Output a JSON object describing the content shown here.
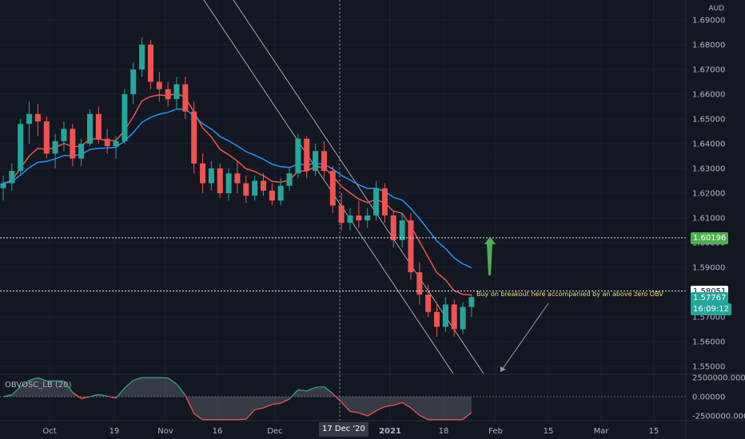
{
  "currency": "AUD",
  "price_axis_labels": [
    "1.69000",
    "1.68000",
    "1.67000",
    "1.66000",
    "1.65000",
    "1.64000",
    "1.63000",
    "1.62000",
    "1.61000",
    "1.60000",
    "1.59000",
    "1.58000",
    "1.57000",
    "1.56000",
    "1.55000"
  ],
  "price_axis_values": [
    1.69,
    1.68,
    1.67,
    1.66,
    1.65,
    1.64,
    1.63,
    1.62,
    1.61,
    1.6,
    1.59,
    1.58,
    1.57,
    1.56,
    1.55
  ],
  "time_axis_labels": [
    "Oct",
    "19",
    "Nov",
    "16",
    "Dec",
    "17 Dec '20",
    "2021",
    "18",
    "Feb",
    "15",
    "Mar",
    "15"
  ],
  "price_tags": {
    "level_green": "1.60196",
    "level_white": "1.58051",
    "last_price": "1.57767",
    "countdown": "16:09:12"
  },
  "annotation": "Buy on breakout here accompanied by an above zero OBV",
  "indicator": {
    "title": "OBVOSC_LB (20)",
    "axis_labels": [
      "2500000.00000",
      "0.00000",
      "-2500000.00000"
    ],
    "axis_values": [
      2500000,
      0,
      -2500000
    ]
  },
  "colors": {
    "background": "#131722",
    "up": "#26a69a",
    "down": "#ef5350",
    "ma_fast": "#ef5350",
    "ma_slow": "#2196f3",
    "green_tag": "#4caf50",
    "arrow": "#4caf50"
  },
  "chart_data": {
    "type": "candlestick",
    "symbol_currency": "AUD",
    "ylim": [
      1.547,
      1.693
    ],
    "x_labels": [
      "Oct",
      "19",
      "Nov",
      "16",
      "Dec",
      "2021",
      "18",
      "Feb",
      "15",
      "Mar",
      "15"
    ],
    "ohlc": [
      [
        1.622,
        1.627,
        1.617,
        1.624
      ],
      [
        1.624,
        1.632,
        1.621,
        1.629
      ],
      [
        1.629,
        1.65,
        1.627,
        1.648
      ],
      [
        1.648,
        1.657,
        1.64,
        1.652
      ],
      [
        1.652,
        1.656,
        1.643,
        1.649
      ],
      [
        1.649,
        1.651,
        1.634,
        1.636
      ],
      [
        1.636,
        1.644,
        1.63,
        1.641
      ],
      [
        1.641,
        1.649,
        1.637,
        1.646
      ],
      [
        1.646,
        1.648,
        1.631,
        1.634
      ],
      [
        1.634,
        1.642,
        1.631,
        1.64
      ],
      [
        1.64,
        1.654,
        1.639,
        1.652
      ],
      [
        1.652,
        1.655,
        1.64,
        1.642
      ],
      [
        1.642,
        1.646,
        1.636,
        1.639
      ],
      [
        1.639,
        1.643,
        1.634,
        1.641
      ],
      [
        1.641,
        1.662,
        1.64,
        1.66
      ],
      [
        1.66,
        1.673,
        1.656,
        1.67
      ],
      [
        1.67,
        1.683,
        1.667,
        1.68
      ],
      [
        1.68,
        1.682,
        1.662,
        1.665
      ],
      [
        1.665,
        1.669,
        1.657,
        1.662
      ],
      [
        1.662,
        1.665,
        1.655,
        1.658
      ],
      [
        1.658,
        1.667,
        1.654,
        1.664
      ],
      [
        1.664,
        1.667,
        1.65,
        1.653
      ],
      [
        1.653,
        1.657,
        1.628,
        1.632
      ],
      [
        1.632,
        1.636,
        1.62,
        1.624
      ],
      [
        1.624,
        1.633,
        1.621,
        1.63
      ],
      [
        1.63,
        1.632,
        1.618,
        1.62
      ],
      [
        1.62,
        1.63,
        1.617,
        1.628
      ],
      [
        1.628,
        1.633,
        1.62,
        1.624
      ],
      [
        1.624,
        1.627,
        1.616,
        1.619
      ],
      [
        1.619,
        1.627,
        1.617,
        1.625
      ],
      [
        1.625,
        1.628,
        1.619,
        1.621
      ],
      [
        1.621,
        1.624,
        1.615,
        1.617
      ],
      [
        1.617,
        1.626,
        1.615,
        1.623
      ],
      [
        1.623,
        1.63,
        1.621,
        1.628
      ],
      [
        1.628,
        1.644,
        1.626,
        1.642
      ],
      [
        1.642,
        1.643,
        1.626,
        1.629
      ],
      [
        1.629,
        1.64,
        1.627,
        1.637
      ],
      [
        1.637,
        1.641,
        1.626,
        1.629
      ],
      [
        1.629,
        1.631,
        1.612,
        1.615
      ],
      [
        1.615,
        1.62,
        1.605,
        1.608
      ],
      [
        1.608,
        1.614,
        1.605,
        1.611
      ],
      [
        1.611,
        1.617,
        1.606,
        1.609
      ],
      [
        1.609,
        1.614,
        1.606,
        1.611
      ],
      [
        1.611,
        1.625,
        1.609,
        1.622
      ],
      [
        1.622,
        1.624,
        1.608,
        1.611
      ],
      [
        1.611,
        1.613,
        1.598,
        1.601
      ],
      [
        1.601,
        1.612,
        1.598,
        1.609
      ],
      [
        1.609,
        1.612,
        1.585,
        1.588
      ],
      [
        1.588,
        1.592,
        1.575,
        1.579
      ],
      [
        1.579,
        1.583,
        1.57,
        1.572
      ],
      [
        1.572,
        1.576,
        1.562,
        1.566
      ],
      [
        1.566,
        1.578,
        1.564,
        1.575
      ],
      [
        1.575,
        1.577,
        1.562,
        1.565
      ],
      [
        1.565,
        1.576,
        1.563,
        1.574
      ],
      [
        1.574,
        1.579,
        1.57,
        1.578
      ]
    ]
  }
}
